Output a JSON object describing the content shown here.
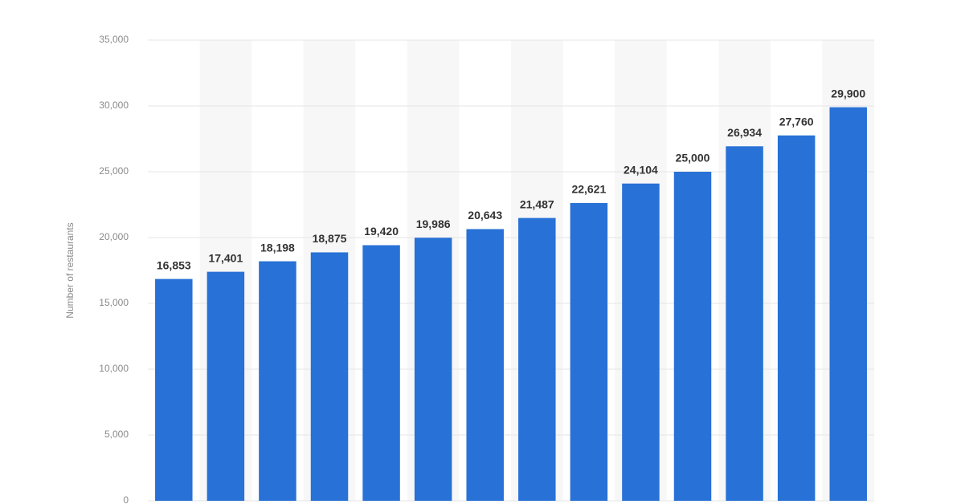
{
  "chart_data": {
    "type": "bar",
    "y_label": "Number of restaurants",
    "categories": [
      null,
      null,
      null,
      null,
      null,
      null,
      null,
      null,
      null,
      null,
      null,
      null,
      null,
      null
    ],
    "values": [
      16853,
      17401,
      18198,
      18875,
      19420,
      19986,
      20643,
      21487,
      22621,
      24104,
      25000,
      26934,
      27760,
      29900
    ],
    "value_labels": [
      "16,853",
      "17,401",
      "18,198",
      "18,875",
      "19,420",
      "19,986",
      "20,643",
      "21,487",
      "22,621",
      "24,104",
      "25,000",
      "26,934",
      "27,760",
      "29,900"
    ],
    "color": "#2871d6",
    "ylim": [
      0,
      35000
    ],
    "yticks": [
      0,
      {
        "value": 5000,
        "label": "5,000"
      },
      {
        "value": 10000,
        "label": "10,000"
      },
      {
        "value": 15000,
        "label": "15,000"
      },
      {
        "value": 20000,
        "label": "20,000"
      },
      {
        "value": 25000,
        "label": "25,000"
      },
      {
        "value": 30000,
        "label": "30,000"
      },
      {
        "value": 35000,
        "label": "35,000"
      }
    ],
    "grid": true
  }
}
